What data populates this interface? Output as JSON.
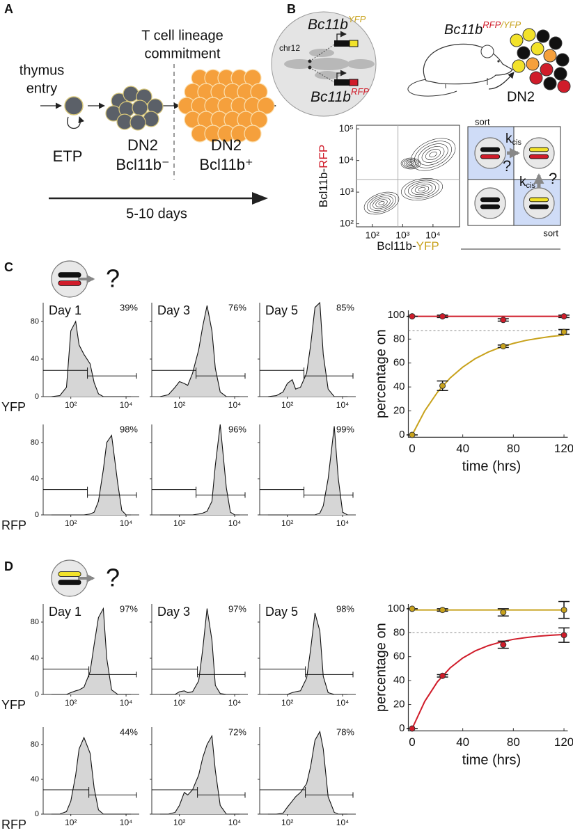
{
  "panel_a": {
    "label": "A",
    "heading": [
      "T cell lineage",
      "commitment"
    ],
    "entry": [
      "thymus",
      "entry"
    ],
    "etp": "ETP",
    "dn2_neg": [
      "DN2",
      "Bcl11b⁻"
    ],
    "dn2_pos": [
      "DN2",
      "Bcl11b⁺"
    ],
    "duration": "5-10 days"
  },
  "panel_b": {
    "label": "B",
    "chromosome": {
      "top_gene": "Bc11b",
      "top_allele": "YFP",
      "chr": "chr12",
      "bottom_gene": "Bc11b",
      "bottom_allele": "RFP"
    },
    "mouse": {
      "gene": "Bc11b",
      "allele_red": "RFP",
      "allele_yellow": "/YFP",
      "population": "DN2"
    },
    "flow": {
      "xlabel_prefix": "Bcl11b-",
      "xlabel_color": "YFP",
      "ylabel_prefix": "Bcl11b-",
      "ylabel_color": "RFP",
      "xlim": [
        30,
        75000
      ],
      "ylim": [
        80,
        130000
      ],
      "xticks": [
        {
          "value": 100,
          "label": "10²"
        },
        {
          "value": 1000,
          "label": "10³"
        },
        {
          "value": 10000,
          "label": "10⁴"
        }
      ],
      "yticks": [
        {
          "value": 100,
          "label": "10²"
        },
        {
          "value": 1000,
          "label": "10³"
        },
        {
          "value": 10000,
          "label": "10⁴"
        },
        {
          "value": 100000,
          "label": "10⁵"
        }
      ],
      "xgate": 700,
      "ygate": 2500
    },
    "sort_scheme": {
      "sort_top": "sort",
      "sort_bottom": "sort",
      "rate_top": {
        "k": "k",
        "sub": "cis"
      },
      "rate_right": {
        "k": "k",
        "sub": "cis"
      },
      "question_top": "?",
      "question_right": "?"
    }
  },
  "panel_c": {
    "label": "C",
    "question": "?",
    "histograms": {
      "days": [
        "Day 1",
        "Day 3",
        "Day 5"
      ],
      "x": [
        20,
        40,
        70,
        100,
        150,
        200,
        300,
        500,
        700,
        1000,
        1500,
        2000,
        3000,
        5000,
        7000,
        10000,
        15000
      ],
      "xlim": [
        10,
        30000
      ],
      "xticks": [
        {
          "value": 100,
          "label": "10²"
        },
        {
          "value": 10000,
          "label": "10⁴"
        }
      ],
      "ylim": [
        0,
        100
      ],
      "yticks": [
        0,
        40,
        80
      ],
      "gate": 400,
      "rows": [
        {
          "channel": "YFP",
          "color": "#c8a21c",
          "panels": [
            {
              "values": [
                0,
                1,
                10,
                70,
                80,
                55,
                45,
                35,
                15,
                3,
                0,
                0,
                0,
                0,
                0,
                0,
                0
              ],
              "percent": "39%"
            },
            {
              "values": [
                0,
                2,
                10,
                16,
                14,
                12,
                25,
                50,
                75,
                97,
                70,
                30,
                5,
                0,
                0,
                0,
                0
              ],
              "percent": "76%"
            },
            {
              "values": [
                0,
                1,
                5,
                14,
                18,
                8,
                10,
                25,
                55,
                95,
                100,
                45,
                8,
                0,
                0,
                0,
                0
              ],
              "percent": "85%"
            }
          ]
        },
        {
          "channel": "RFP",
          "color": "#d01c2a",
          "panels": [
            {
              "values": [
                0,
                0,
                0,
                0,
                0,
                0,
                0,
                1,
                3,
                15,
                50,
                80,
                88,
                35,
                5,
                0,
                0
              ],
              "percent": "98%"
            },
            {
              "values": [
                0,
                0,
                0,
                0,
                0,
                0,
                0,
                1,
                2,
                4,
                15,
                55,
                100,
                30,
                3,
                0,
                0
              ],
              "percent": "96%"
            },
            {
              "values": [
                0,
                0,
                0,
                0,
                0,
                0,
                0,
                0,
                0,
                0,
                2,
                10,
                40,
                98,
                40,
                3,
                0
              ],
              "percent": "99%"
            }
          ]
        }
      ]
    },
    "time_course": {
      "type": "line",
      "ylabel": "percentage on",
      "xlabel": "time (hrs)",
      "xlim": [
        -3,
        123
      ],
      "ylim": [
        -2,
        104
      ],
      "xticks": [
        0,
        40,
        80,
        120
      ],
      "yticks": [
        0,
        20,
        40,
        60,
        80,
        100
      ],
      "reference": 87,
      "fit_x": [
        0,
        10,
        20,
        30,
        40,
        50,
        60,
        70,
        80,
        90,
        100,
        110,
        120
      ],
      "series": [
        {
          "color": "#d01c2a",
          "x": [
            0,
            24,
            72,
            120
          ],
          "values": [
            99,
            99,
            96,
            99
          ],
          "errors": [
            0,
            1,
            1,
            1
          ],
          "fit": [
            99,
            99,
            99,
            99,
            99,
            99,
            99,
            99,
            99,
            99,
            99,
            99,
            99
          ]
        },
        {
          "color": "#c8a21c",
          "x": [
            0,
            24,
            72,
            120
          ],
          "values": [
            0,
            41,
            74,
            86
          ],
          "errors": [
            0,
            4,
            1,
            2
          ],
          "fit": [
            0,
            20.1,
            35.6,
            47.5,
            56.6,
            63.7,
            69.1,
            73.2,
            76.4,
            78.9,
            80.7,
            82.2,
            83.3
          ]
        }
      ]
    }
  },
  "panel_d": {
    "label": "D",
    "question": "?",
    "histograms": {
      "days": [
        "Day 1",
        "Day 3",
        "Day 5"
      ],
      "x": [
        20,
        40,
        70,
        100,
        150,
        200,
        300,
        500,
        700,
        1000,
        1500,
        2000,
        3000,
        5000,
        7000,
        10000,
        15000
      ],
      "xlim": [
        10,
        30000
      ],
      "xticks": [
        {
          "value": 100,
          "label": "10²"
        },
        {
          "value": 10000,
          "label": "10⁴"
        }
      ],
      "ylim": [
        0,
        100
      ],
      "yticks": [
        0,
        40,
        80
      ],
      "gate": 450,
      "rows": [
        {
          "channel": "YFP",
          "color": "#c8a21c",
          "panels": [
            {
              "values": [
                0,
                0,
                0,
                2,
                4,
                5,
                8,
                25,
                55,
                85,
                95,
                40,
                5,
                0,
                0,
                0,
                0
              ],
              "percent": "97%"
            },
            {
              "values": [
                0,
                0,
                0,
                3,
                4,
                2,
                3,
                15,
                50,
                95,
                60,
                10,
                1,
                0,
                0,
                0,
                0
              ],
              "percent": "97%"
            },
            {
              "values": [
                0,
                0,
                0,
                0,
                2,
                3,
                4,
                18,
                50,
                90,
                70,
                20,
                2,
                0,
                0,
                0,
                0
              ],
              "percent": "98%"
            }
          ]
        },
        {
          "channel": "RFP",
          "color": "#d01c2a",
          "panels": [
            {
              "values": [
                0,
                0,
                3,
                15,
                45,
                75,
                88,
                70,
                30,
                5,
                0,
                0,
                0,
                0,
                0,
                0,
                0
              ],
              "percent": "44%"
            },
            {
              "values": [
                0,
                0,
                2,
                10,
                25,
                22,
                28,
                45,
                65,
                80,
                90,
                50,
                10,
                0,
                0,
                0,
                0
              ],
              "percent": "72%"
            },
            {
              "values": [
                0,
                0,
                1,
                8,
                15,
                20,
                25,
                35,
                55,
                85,
                95,
                75,
                20,
                2,
                0,
                0,
                0
              ],
              "percent": "78%"
            }
          ]
        }
      ]
    },
    "time_course": {
      "type": "line",
      "ylabel": "percentage on",
      "xlabel": "time (hrs)",
      "xlim": [
        -3,
        123
      ],
      "ylim": [
        -2,
        104
      ],
      "xticks": [
        0,
        40,
        80,
        120
      ],
      "yticks": [
        0,
        20,
        40,
        60,
        80,
        100
      ],
      "reference": 80,
      "fit_x": [
        0,
        10,
        20,
        30,
        40,
        50,
        60,
        70,
        80,
        90,
        100,
        110,
        120
      ],
      "series": [
        {
          "color": "#c8a21c",
          "x": [
            0,
            24,
            72,
            120
          ],
          "values": [
            100,
            99,
            97,
            99
          ],
          "errors": [
            0,
            1,
            3,
            7
          ],
          "fit": [
            99,
            99,
            99,
            99,
            99,
            99,
            99,
            99,
            99,
            99,
            99,
            99,
            99
          ]
        },
        {
          "color": "#d01c2a",
          "x": [
            0,
            24,
            72,
            120
          ],
          "values": [
            0,
            44,
            70,
            78
          ],
          "errors": [
            0,
            1,
            3,
            6
          ],
          "fit": [
            0,
            22.7,
            39.0,
            50.6,
            58.9,
            64.9,
            69.2,
            72.2,
            74.5,
            76.0,
            77.1,
            77.9,
            78.5
          ]
        }
      ]
    }
  }
}
